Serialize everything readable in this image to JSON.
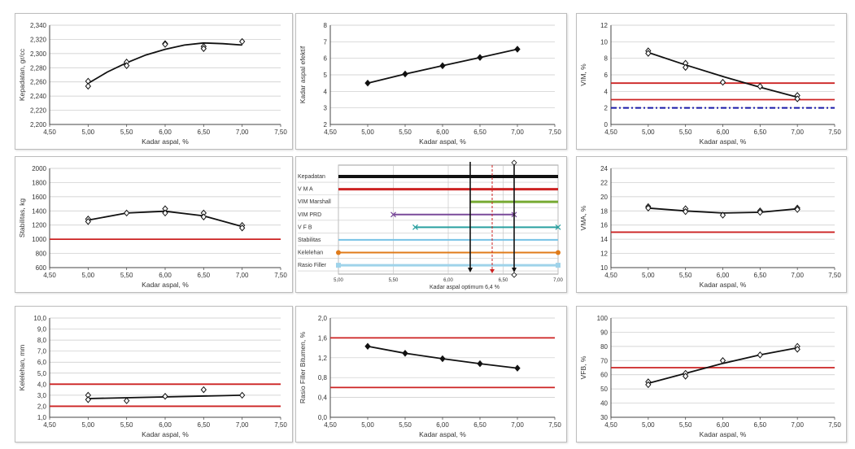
{
  "colors": {
    "red": "#cc2222",
    "black": "#111111",
    "grid": "#c8c8c8",
    "blue": "#1a1aa8",
    "green": "#77aa33",
    "purple": "#7a4a9a",
    "teal": "#2aa0a0",
    "skyblue": "#77c2e6",
    "orange": "#e07b1a",
    "lightblue": "#9fd3ea"
  },
  "chart_data": [
    {
      "id": "kepadatan",
      "type": "scatter",
      "ylabel": "Kepadatan, gr/cc",
      "xlabel": "Kadar aspal, %",
      "xlim": [
        4.5,
        7.5
      ],
      "xticks": [
        "4,50",
        "5,00",
        "5,50",
        "6,00",
        "6,50",
        "7,00",
        "7,50"
      ],
      "ylim": [
        2.2,
        2.34
      ],
      "yticks": [
        "2,200",
        "2,220",
        "2,240",
        "2,260",
        "2,280",
        "2,300",
        "2,320",
        "2,340"
      ],
      "points": [
        [
          5.0,
          2.261
        ],
        [
          5.0,
          2.254
        ],
        [
          5.5,
          2.288
        ],
        [
          5.5,
          2.283
        ],
        [
          6.0,
          2.314
        ],
        [
          6.0,
          2.313
        ],
        [
          6.5,
          2.31
        ],
        [
          6.5,
          2.307
        ],
        [
          7.0,
          2.317
        ]
      ],
      "curve": [
        [
          5.0,
          2.258
        ],
        [
          5.25,
          2.274
        ],
        [
          5.5,
          2.287
        ],
        [
          5.75,
          2.298
        ],
        [
          6.0,
          2.306
        ],
        [
          6.25,
          2.312
        ],
        [
          6.5,
          2.315
        ],
        [
          6.75,
          2.314
        ],
        [
          7.0,
          2.312
        ]
      ],
      "hlines": []
    },
    {
      "id": "kadar_aspal_efektif",
      "type": "line",
      "ylabel": "Kadar aspal efektif",
      "xlabel": "Kadar aspal, %",
      "xlim": [
        4.5,
        7.5
      ],
      "xticks": [
        "4,50",
        "5,00",
        "5,50",
        "6,00",
        "6,50",
        "7,00",
        "7,50"
      ],
      "ylim": [
        2,
        8
      ],
      "yticks": [
        "2",
        "3",
        "4",
        "5",
        "6",
        "7",
        "8"
      ],
      "points": [
        [
          5.0,
          4.5
        ],
        [
          5.5,
          5.05
        ],
        [
          6.0,
          5.55
        ],
        [
          6.5,
          6.05
        ],
        [
          7.0,
          6.55
        ]
      ],
      "curve": [
        [
          5.0,
          4.5
        ],
        [
          5.5,
          5.05
        ],
        [
          6.0,
          5.55
        ],
        [
          6.5,
          6.05
        ],
        [
          7.0,
          6.55
        ]
      ],
      "hlines": []
    },
    {
      "id": "vim",
      "type": "scatter",
      "ylabel": "VIM, %",
      "xlabel": "Kadar aspal, %",
      "xlim": [
        4.5,
        7.5
      ],
      "xticks": [
        "4,50",
        "5,00",
        "5,50",
        "6,00",
        "6,50",
        "7,00",
        "7,50"
      ],
      "ylim": [
        0,
        12
      ],
      "yticks": [
        "0",
        "2",
        "4",
        "6",
        "8",
        "10",
        "12"
      ],
      "points": [
        [
          5.0,
          8.9
        ],
        [
          5.0,
          8.6
        ],
        [
          5.5,
          7.4
        ],
        [
          5.5,
          6.9
        ],
        [
          6.0,
          5.1
        ],
        [
          6.5,
          4.6
        ],
        [
          7.0,
          3.5
        ],
        [
          7.0,
          3.1
        ]
      ],
      "curve": [
        [
          5.0,
          8.7
        ],
        [
          5.5,
          7.2
        ],
        [
          6.0,
          5.8
        ],
        [
          6.5,
          4.5
        ],
        [
          7.0,
          3.3
        ]
      ],
      "hlines": [
        {
          "y": 5,
          "color": "red",
          "dash": false
        },
        {
          "y": 3,
          "color": "red",
          "dash": false
        },
        {
          "y": 2,
          "color": "blue",
          "dash": true
        }
      ]
    },
    {
      "id": "stabilitas",
      "type": "scatter",
      "ylabel": "Stabilitas, kg",
      "xlabel": "Kadar aspal, %",
      "xlim": [
        4.5,
        7.5
      ],
      "xticks": [
        "4,50",
        "5,00",
        "5,50",
        "6,00",
        "6,50",
        "7,00",
        "7,50"
      ],
      "ylim": [
        600,
        2000
      ],
      "yticks": [
        "600",
        "800",
        "1000",
        "1200",
        "1400",
        "1600",
        "1800",
        "2000"
      ],
      "points": [
        [
          5.0,
          1285
        ],
        [
          5.0,
          1250
        ],
        [
          5.5,
          1370
        ],
        [
          6.0,
          1430
        ],
        [
          6.0,
          1370
        ],
        [
          6.5,
          1370
        ],
        [
          6.5,
          1315
        ],
        [
          7.0,
          1195
        ],
        [
          7.0,
          1160
        ]
      ],
      "curve": [
        [
          5.0,
          1270
        ],
        [
          5.5,
          1370
        ],
        [
          6.0,
          1395
        ],
        [
          6.5,
          1330
        ],
        [
          7.0,
          1180
        ]
      ],
      "hlines": [
        {
          "y": 1000,
          "color": "red",
          "dash": false
        }
      ]
    },
    {
      "id": "vma",
      "type": "scatter",
      "ylabel": "VMA, %",
      "xlabel": "Kadar aspal, %",
      "xlim": [
        4.5,
        7.5
      ],
      "xticks": [
        "4,50",
        "5,00",
        "5,50",
        "6,00",
        "6,50",
        "7,00",
        "7,50"
      ],
      "ylim": [
        10,
        24
      ],
      "yticks": [
        "10",
        "12",
        "14",
        "16",
        "18",
        "20",
        "22",
        "24"
      ],
      "points": [
        [
          5.0,
          18.6
        ],
        [
          5.0,
          18.4
        ],
        [
          5.5,
          18.3
        ],
        [
          5.5,
          17.9
        ],
        [
          6.0,
          17.4
        ],
        [
          6.5,
          18.0
        ],
        [
          6.5,
          17.8
        ],
        [
          7.0,
          18.4
        ],
        [
          7.0,
          18.2
        ]
      ],
      "curve": [
        [
          5.0,
          18.4
        ],
        [
          5.5,
          18.0
        ],
        [
          6.0,
          17.7
        ],
        [
          6.5,
          17.8
        ],
        [
          7.0,
          18.3
        ]
      ],
      "hlines": [
        {
          "y": 15,
          "color": "red",
          "dash": false
        }
      ]
    },
    {
      "id": "kelelehan",
      "type": "scatter",
      "ylabel": "Kelelehan, mm",
      "xlabel": "Kadar aspal, %",
      "xlim": [
        4.5,
        7.5
      ],
      "xticks": [
        "4,50",
        "5,00",
        "5,50",
        "6,00",
        "6,50",
        "7,00",
        "7,50"
      ],
      "ylim": [
        1,
        10
      ],
      "yticks": [
        "1,0",
        "2,0",
        "3,0",
        "4,0",
        "5,0",
        "6,0",
        "7,0",
        "8,0",
        "9,0",
        "10,0"
      ],
      "points": [
        [
          5.0,
          3.0
        ],
        [
          5.0,
          2.6
        ],
        [
          5.5,
          2.5
        ],
        [
          6.0,
          2.9
        ],
        [
          6.5,
          3.5
        ],
        [
          7.0,
          3.0
        ]
      ],
      "curve": [
        [
          5.0,
          2.7
        ],
        [
          7.0,
          3.0
        ]
      ],
      "hlines": [
        {
          "y": 4,
          "color": "red",
          "dash": false
        },
        {
          "y": 2,
          "color": "red",
          "dash": false
        }
      ]
    },
    {
      "id": "rasio_filler",
      "type": "line",
      "ylabel": "Rasio Filler Bitumen, %",
      "xlabel": "Kadar aspal, %",
      "xlim": [
        4.5,
        7.5
      ],
      "xticks": [
        "4,50",
        "5,00",
        "5,50",
        "6,00",
        "6,50",
        "7,00",
        "7,50"
      ],
      "ylim": [
        0,
        2
      ],
      "yticks": [
        "0,0",
        "0,4",
        "0,8",
        "1,2",
        "1,6",
        "2,0"
      ],
      "points": [
        [
          5.0,
          1.43
        ],
        [
          5.5,
          1.29
        ],
        [
          6.0,
          1.18
        ],
        [
          6.5,
          1.08
        ],
        [
          7.0,
          0.99
        ]
      ],
      "curve": [
        [
          5.0,
          1.43
        ],
        [
          5.5,
          1.29
        ],
        [
          6.0,
          1.18
        ],
        [
          6.5,
          1.08
        ],
        [
          7.0,
          0.99
        ]
      ],
      "hlines": [
        {
          "y": 1.6,
          "color": "red",
          "dash": false
        },
        {
          "y": 0.6,
          "color": "red",
          "dash": false
        }
      ]
    },
    {
      "id": "vfb",
      "type": "scatter",
      "ylabel": "VFB, %",
      "xlabel": "Kadar aspal, %",
      "xlim": [
        4.5,
        7.5
      ],
      "xticks": [
        "4,50",
        "5,00",
        "5,50",
        "6,00",
        "6,50",
        "7,00",
        "7,50"
      ],
      "ylim": [
        30,
        100
      ],
      "yticks": [
        "30",
        "40",
        "50",
        "60",
        "70",
        "80",
        "90",
        "100"
      ],
      "points": [
        [
          5.0,
          55
        ],
        [
          5.0,
          53
        ],
        [
          5.5,
          61
        ],
        [
          5.5,
          59
        ],
        [
          6.0,
          70
        ],
        [
          6.5,
          74
        ],
        [
          7.0,
          80
        ],
        [
          7.0,
          78
        ]
      ],
      "curve": [
        [
          5.0,
          54
        ],
        [
          5.5,
          61
        ],
        [
          6.0,
          68
        ],
        [
          6.5,
          74
        ],
        [
          7.0,
          79
        ]
      ],
      "hlines": [
        {
          "y": 65,
          "color": "red",
          "dash": false
        }
      ]
    }
  ],
  "optimum": {
    "xlim": [
      5.0,
      7.0
    ],
    "xticks": [
      "5,00",
      "5,50",
      "6,00",
      "6,50",
      "7,00"
    ],
    "xlabel": "Kadar aspal optimum 6,4 %",
    "optimum_x": 6.4,
    "bound_low": 6.2,
    "bound_high": 6.6,
    "rows": [
      {
        "label": "Kepadatan",
        "from": 5.0,
        "to": 7.0,
        "color": "black",
        "width": 4
      },
      {
        "label": "V M A",
        "from": 5.0,
        "to": 7.0,
        "color": "red",
        "width": 3
      },
      {
        "label": "VIM Marshall",
        "from": 6.2,
        "to": 7.0,
        "color": "green",
        "width": 3
      },
      {
        "label": "VIM PRD",
        "from": 5.5,
        "to": 6.6,
        "color": "purple",
        "width": 2,
        "cross": true
      },
      {
        "label": "V F B",
        "from": 5.7,
        "to": 7.0,
        "color": "teal",
        "width": 2,
        "cross": true
      },
      {
        "label": "Stabilitas",
        "from": 5.0,
        "to": 7.0,
        "color": "skyblue",
        "width": 2
      },
      {
        "label": "Kelelehan",
        "from": 5.0,
        "to": 7.0,
        "color": "orange",
        "width": 2,
        "dots": true
      },
      {
        "label": "Rasio Filler",
        "from": 5.0,
        "to": 7.0,
        "color": "lightblue",
        "width": 3,
        "squares": true
      }
    ]
  }
}
